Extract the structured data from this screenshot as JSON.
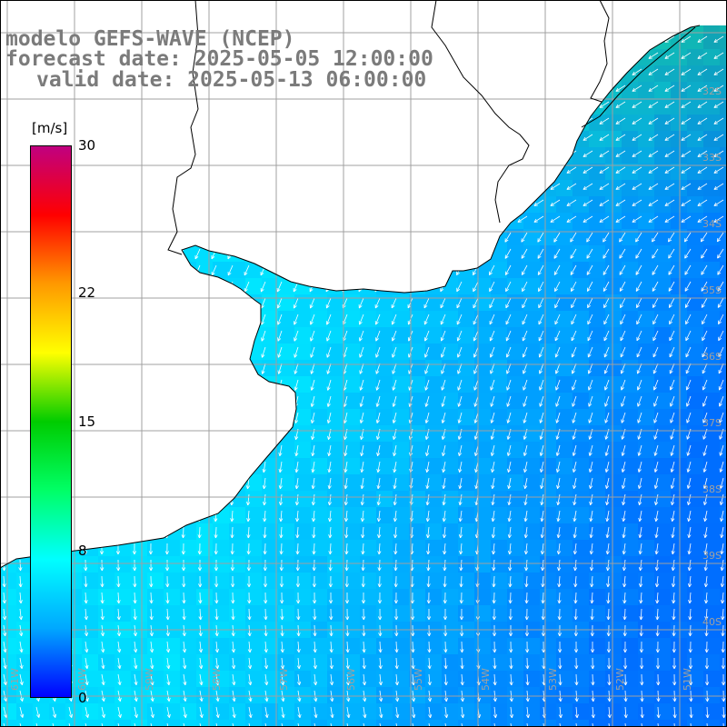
{
  "title": {
    "model": "modelo GEFS-WAVE (NCEP)",
    "forecast": "forecast date: 2025-05-05 12:00:00",
    "valid": "valid date: 2025-05-13 06:00:00"
  },
  "colorbar": {
    "unit": "[m/s]",
    "min": 0,
    "max": 30,
    "ticks": [
      {
        "value": 30,
        "label": "30"
      },
      {
        "value": 22,
        "label": "22"
      },
      {
        "value": 15,
        "label": "15"
      },
      {
        "value": 8,
        "label": "8"
      },
      {
        "value": 0,
        "label": "0"
      }
    ],
    "colors": [
      "#0000ff",
      "#00a8ff",
      "#00ffff",
      "#00ff66",
      "#00cc00",
      "#ffff00",
      "#ff9900",
      "#ff0000",
      "#c00080"
    ]
  },
  "map": {
    "land_color": "#ffffff",
    "grid_color": "#a0a0a0",
    "coast_color": "#000000",
    "lat_labels": [
      "32S",
      "33S",
      "34S",
      "35S",
      "36S",
      "37S",
      "38S",
      "39S",
      "40S"
    ],
    "lon_labels": [
      "61W",
      "60W",
      "59W",
      "58W",
      "57W",
      "56W",
      "55W",
      "54W",
      "53W",
      "52W",
      "51W"
    ],
    "field": {
      "description_level": "wind speed 6-11 m/s over sea",
      "arrow_color": "#ffffff"
    }
  }
}
